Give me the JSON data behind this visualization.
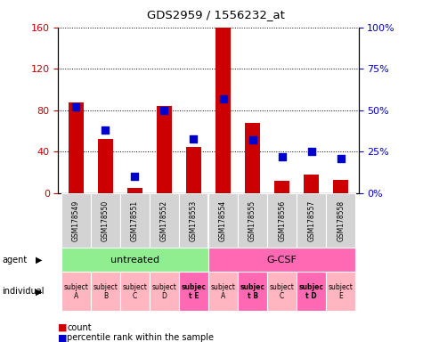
{
  "title": "GDS2959 / 1556232_at",
  "samples": [
    "GSM178549",
    "GSM178550",
    "GSM178551",
    "GSM178552",
    "GSM178553",
    "GSM178554",
    "GSM178555",
    "GSM178556",
    "GSM178557",
    "GSM178558"
  ],
  "counts": [
    88,
    52,
    5,
    84,
    45,
    160,
    68,
    12,
    18,
    13
  ],
  "percentiles": [
    52,
    38,
    10,
    50,
    33,
    57,
    32,
    22,
    25,
    21
  ],
  "ylim_left": [
    0,
    160
  ],
  "ylim_right": [
    0,
    100
  ],
  "yticks_left": [
    0,
    40,
    80,
    120,
    160
  ],
  "ytick_labels_left": [
    "0",
    "40",
    "80",
    "120",
    "160"
  ],
  "yticks_right": [
    0,
    25,
    50,
    75,
    100
  ],
  "ytick_labels_right": [
    "0%",
    "25%",
    "50%",
    "75%",
    "100%"
  ],
  "agent_groups": [
    {
      "label": "untreated",
      "start": 0,
      "end": 5,
      "color": "#90EE90"
    },
    {
      "label": "G-CSF",
      "start": 5,
      "end": 10,
      "color": "#FF69B4"
    }
  ],
  "individuals": [
    {
      "label": "subject\nA",
      "idx": 0,
      "bold": false
    },
    {
      "label": "subject\nB",
      "idx": 1,
      "bold": false
    },
    {
      "label": "subject\nC",
      "idx": 2,
      "bold": false
    },
    {
      "label": "subject\nD",
      "idx": 3,
      "bold": false
    },
    {
      "label": "subjec\nt E",
      "idx": 4,
      "bold": true
    },
    {
      "label": "subject\nA",
      "idx": 5,
      "bold": false
    },
    {
      "label": "subjec\nt B",
      "idx": 6,
      "bold": true
    },
    {
      "label": "subject\nC",
      "idx": 7,
      "bold": false
    },
    {
      "label": "subjec\nt D",
      "idx": 8,
      "bold": true
    },
    {
      "label": "subject\nE",
      "idx": 9,
      "bold": false
    }
  ],
  "highlight_indices": [
    4,
    6,
    8
  ],
  "bar_color": "#CC0000",
  "dot_color": "#0000CC",
  "bar_width": 0.5,
  "dot_size": 35,
  "tick_label_color_left": "#CC0000",
  "tick_label_color_right": "#0000CC",
  "cell_bg": "#D3D3D3",
  "cell_border": "#FFFFFF",
  "indiv_normal_color": "#FFB6C1",
  "indiv_highlight_color": "#FF69B4",
  "legend_count_color": "#CC0000",
  "legend_pct_color": "#0000CC"
}
